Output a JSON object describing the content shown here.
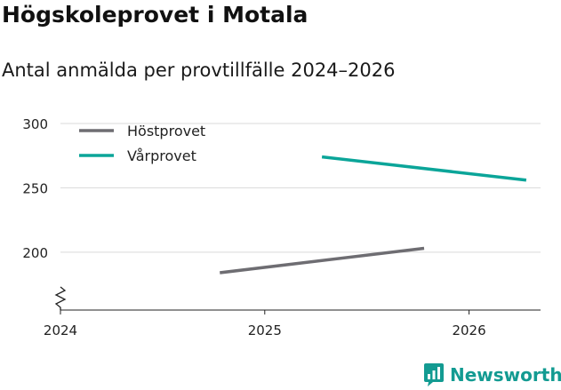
{
  "header": {
    "title": "Högskoleprovet i Motala",
    "subtitle": "Antal anmälda per provtillfälle 2024–2026"
  },
  "brand": {
    "name": "Newsworthy",
    "icon": "newsworthy-logo-icon",
    "color": "#139b92"
  },
  "chart_data": {
    "type": "line",
    "title": "Högskoleprovet i Motala",
    "subtitle": "Antal anmälda per provtillfälle 2024–2026",
    "xlabel": "",
    "ylabel": "",
    "xlim": [
      2024.0,
      2026.35
    ],
    "ylim": [
      155,
      300
    ],
    "x_ticks": [
      2024,
      2025,
      2026
    ],
    "x_tick_labels": [
      "2024",
      "2025",
      "2026"
    ],
    "y_ticks": [
      200,
      250,
      300
    ],
    "y_tick_labels": [
      "200",
      "250",
      "300"
    ],
    "grid": true,
    "axis_break": true,
    "legend_position": "top-left",
    "series": [
      {
        "name": "Höstprovet",
        "color": "#6e6d72",
        "x": [
          2024.78,
          2025.78
        ],
        "values": [
          184,
          203
        ]
      },
      {
        "name": "Vårprovet",
        "color": "#0ba599",
        "x": [
          2025.28,
          2026.28
        ],
        "values": [
          274,
          256
        ]
      }
    ]
  }
}
